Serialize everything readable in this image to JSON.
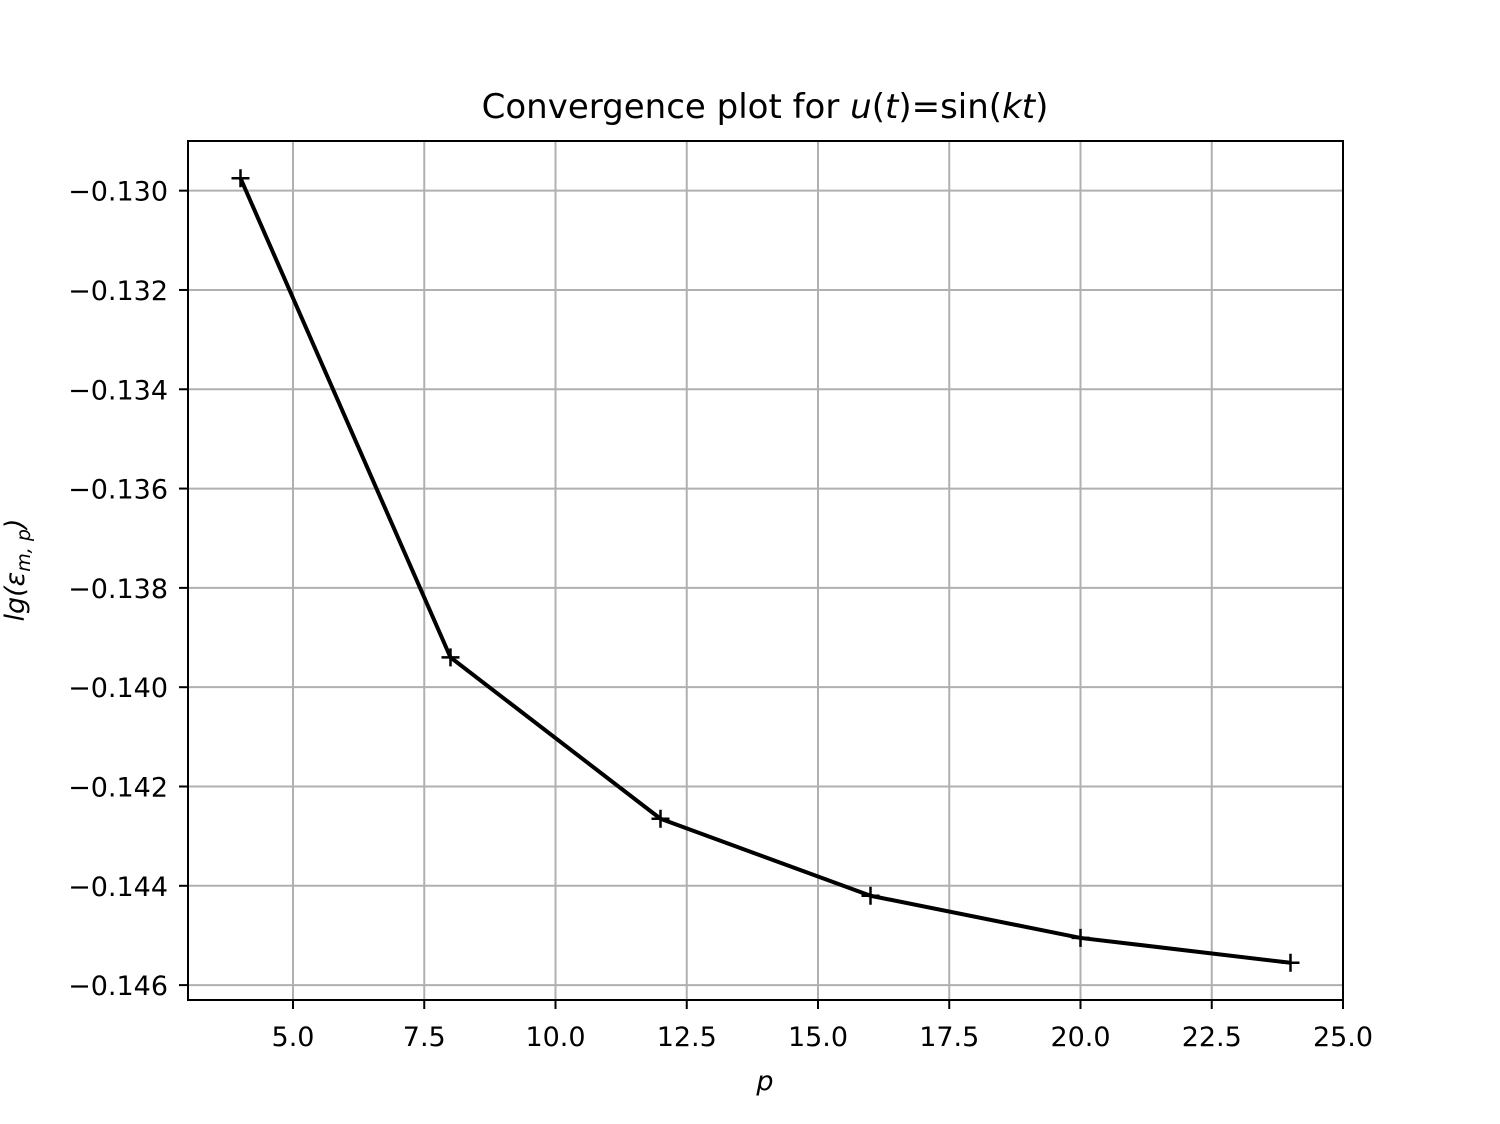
{
  "chart_data": {
    "type": "line",
    "title": "Convergence plot for u(t)=sin(kt)",
    "title_parts": {
      "prefix": "Convergence plot for ",
      "u": "u",
      "paren_open": "(",
      "t": "t",
      "paren_close_eq": ")=sin(",
      "kt": "kt",
      "paren_close": ")"
    },
    "xlabel": "p",
    "ylabel": "lg(ε_{m,p})",
    "ylabel_parts": {
      "lg": "lg(",
      "eps": "ε",
      "sub": "m, p",
      "close": ")"
    },
    "xlim": [
      3.0,
      25.0
    ],
    "ylim": [
      -0.1463,
      -0.129
    ],
    "xticks": [
      5.0,
      7.5,
      10.0,
      12.5,
      15.0,
      17.5,
      20.0,
      22.5,
      25.0
    ],
    "xtick_labels": [
      "5.0",
      "7.5",
      "10.0",
      "12.5",
      "15.0",
      "17.5",
      "20.0",
      "22.5",
      "25.0"
    ],
    "yticks": [
      -0.13,
      -0.132,
      -0.134,
      -0.136,
      -0.138,
      -0.14,
      -0.142,
      -0.144,
      -0.146
    ],
    "ytick_labels": [
      "−0.130",
      "−0.132",
      "−0.134",
      "−0.136",
      "−0.138",
      "−0.140",
      "−0.142",
      "−0.144",
      "−0.146"
    ],
    "grid": true,
    "series": [
      {
        "x": [
          4,
          8,
          12,
          16,
          20,
          24
        ],
        "y": [
          -0.12975,
          -0.1394,
          -0.14265,
          -0.1442,
          -0.14505,
          -0.14555
        ],
        "color": "#000000",
        "marker": "+"
      }
    ]
  },
  "colors": {
    "grid": "#b0b0b0",
    "axes": "#000000",
    "line": "#000000"
  }
}
